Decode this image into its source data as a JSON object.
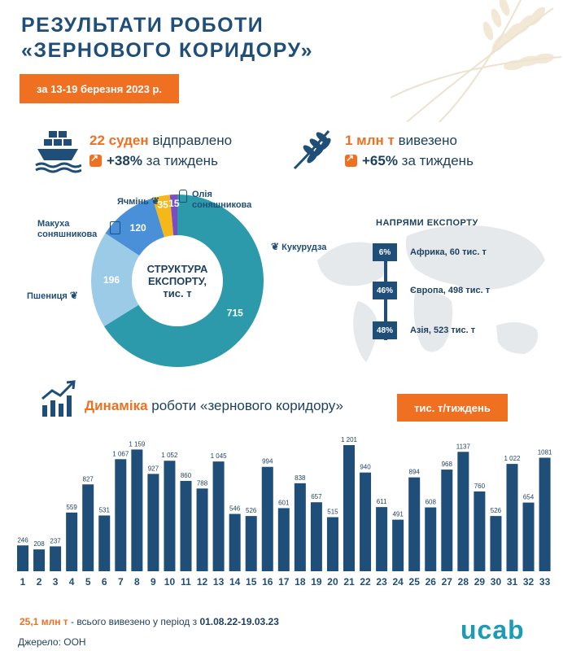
{
  "header": {
    "title_line1": "РЕЗУЛЬТАТИ РОБОТИ",
    "title_line2": "«ЗЕРНОВОГО КОРИДОРУ»",
    "date_range": "за 13-19 березня 2023 р."
  },
  "stats": {
    "ships_value": "22 суден",
    "ships_label": " відправлено",
    "ships_change": "+38%",
    "ships_change_label": " за тиждень",
    "tonnage_value": "1 млн т",
    "tonnage_label": " вивезено",
    "tonnage_change": "+65%",
    "tonnage_change_label": " за тиждень"
  },
  "structure": {
    "center_line1": "СТРУКТУРА",
    "center_line2": "ЕКСПОРТУ,",
    "center_line3": "тис. т",
    "labels": {
      "corn": "Кукурудза",
      "wheat": "Пшениця",
      "meal_line1": "Макуха",
      "meal_line2": "соняшникова",
      "barley": "Ячмінь",
      "oil_line1": "Олія",
      "oil_line2": "соняшникова"
    }
  },
  "directions": {
    "title": "НАПРЯМИ ЕКСПОРТУ",
    "items": [
      {
        "pct": "6%",
        "label": "Африка, 60 тис. т"
      },
      {
        "pct": "46%",
        "label": "Європа, 498 тис. т"
      },
      {
        "pct": "48%",
        "label": "Азія, 523 тис. т"
      }
    ]
  },
  "dynamics": {
    "title_highlight": "Динаміка",
    "title_rest": " роботи «зернового коридору»",
    "unit": "тис. т/тиждень"
  },
  "footer": {
    "total_value": "25,1 млн т",
    "total_mid": " - всього вивезено у період з ",
    "total_period": "01.08.22-19.03.23",
    "source": "Джерело: ООН",
    "logo": "ucab"
  },
  "colors": {
    "navy": "#1f4e79",
    "orange": "#f07022",
    "teal": "#2d9aab",
    "light_blue": "#9ccbe8",
    "mid_blue": "#4a90d9",
    "yellow": "#f5b81b",
    "purple": "#7b4cc4"
  },
  "chart_data": [
    {
      "type": "pie",
      "title": "СТРУКТУРА ЕКСПОРТУ, тис. т",
      "categories": [
        "Кукурудза",
        "Пшениця",
        "Макуха соняшникова",
        "Ячмінь",
        "Олія соняшникова"
      ],
      "values": [
        715,
        196,
        120,
        35,
        15
      ],
      "colors": [
        "#2d9aab",
        "#9ccbe8",
        "#4a90d9",
        "#f5b81b",
        "#7b4cc4"
      ]
    },
    {
      "type": "bar",
      "title": "Динаміка роботи «зернового коридору»",
      "ylabel": "тис. т/тиждень",
      "categories": [
        "1",
        "2",
        "3",
        "4",
        "5",
        "6",
        "7",
        "8",
        "9",
        "10",
        "11",
        "12",
        "13",
        "14",
        "15",
        "16",
        "17",
        "18",
        "19",
        "20",
        "21",
        "22",
        "23",
        "24",
        "25",
        "26",
        "27",
        "28",
        "29",
        "30",
        "31",
        "32",
        "33"
      ],
      "values": [
        246,
        208,
        237,
        559,
        827,
        531,
        1067,
        1159,
        927,
        1052,
        860,
        788,
        1045,
        546,
        526,
        994,
        601,
        838,
        657,
        515,
        1201,
        940,
        611,
        491,
        894,
        608,
        968,
        1137,
        760,
        526,
        1022,
        654,
        1081
      ],
      "value_labels": [
        "246",
        "208",
        "237",
        "559",
        "827",
        "531",
        "1 067",
        "1 159",
        "927",
        "1 052",
        "860",
        "788",
        "1 045",
        "546",
        "526",
        "994",
        "601",
        "838",
        "657",
        "515",
        "1 201",
        "940",
        "611",
        "491",
        "894",
        "608",
        "968",
        "1137",
        "760",
        "526",
        "1 022",
        "654",
        "1081"
      ]
    }
  ]
}
